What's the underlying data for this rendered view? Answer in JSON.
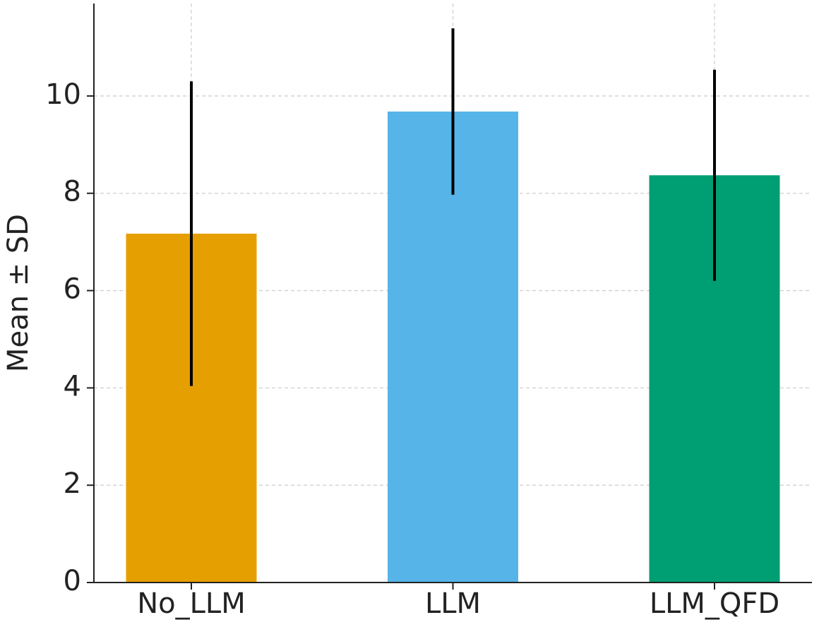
{
  "chart_data": {
    "type": "bar",
    "y_label": "Mean ± SD",
    "categories": [
      "No_LLM",
      "LLM",
      "LLM_QFD"
    ],
    "values": [
      7.17,
      9.68,
      8.37
    ],
    "errors": [
      3.13,
      1.71,
      2.17
    ],
    "colors": [
      "#E69F00",
      "#56B4E9",
      "#009E73"
    ],
    "ylim": [
      0,
      11.9
    ],
    "yticks": [
      0,
      2,
      4,
      6,
      8,
      10
    ],
    "grid": true
  }
}
